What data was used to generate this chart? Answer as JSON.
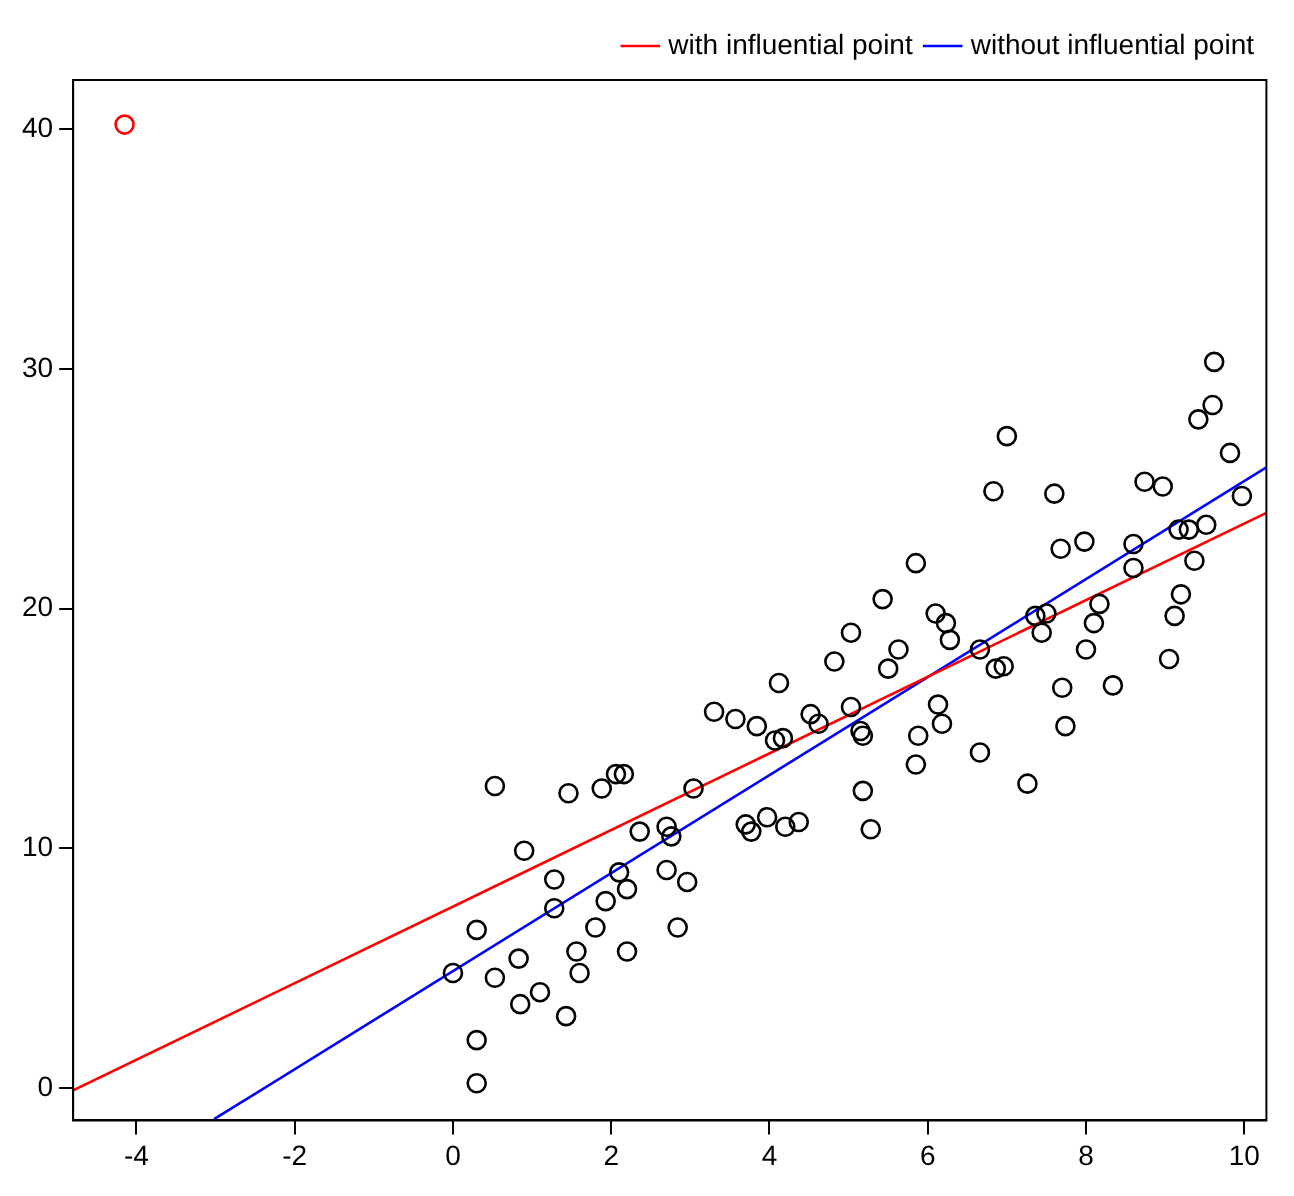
{
  "chart_data": {
    "type": "scatter",
    "xlim": [
      -4.8,
      10.28
    ],
    "ylim": [
      -1.35,
      42.06
    ],
    "xticks": [
      -4,
      -2,
      0,
      2,
      4,
      6,
      8,
      10
    ],
    "yticks": [
      0,
      10,
      20,
      30,
      40
    ],
    "grid": false,
    "legend": "top right",
    "series": [
      {
        "marker": "circle",
        "color": "#000000",
        "x": [
          0,
          0.3,
          0.3,
          0.3,
          0.53,
          0.53,
          0.83,
          0.85,
          0.9,
          1.1,
          1.28,
          1.28,
          1.46,
          1.43,
          1.56,
          1.6,
          1.8,
          1.88,
          1.93,
          2.06,
          2.16,
          2.1,
          2.2,
          2.2,
          2.36,
          2.7,
          2.7,
          2.76,
          2.84,
          2.96,
          3.04,
          3.3,
          3.57,
          3.7,
          3.77,
          3.84,
          3.97,
          4.07,
          4.12,
          4.17,
          4.2,
          4.37,
          4.52,
          4.62,
          4.82,
          5.03,
          5.03,
          5.15,
          5.18,
          5.18,
          5.28,
          5.43,
          5.5,
          5.63,
          5.85,
          5.85,
          5.88,
          6.1,
          6.23,
          6.13,
          6.28,
          6.18,
          6.66,
          6.66,
          6.83,
          6.86,
          6.96,
          7.0,
          7.26,
          7.36,
          7.44,
          7.5,
          7.6,
          7.68,
          7.7,
          7.74,
          7.98,
          8.0,
          8.1,
          8.17,
          8.34,
          8.6,
          8.6,
          8.74,
          8.97,
          9.05,
          9.12,
          9.2,
          9.17,
          9.3,
          9.37,
          9.42,
          9.52,
          9.6,
          9.62,
          9.82,
          9.97
        ],
        "values": [
          4.8,
          6.6,
          2.0,
          0.2,
          12.6,
          4.6,
          5.4,
          3.5,
          9.9,
          4.0,
          8.7,
          7.5,
          12.3,
          3.0,
          5.7,
          4.8,
          6.7,
          12.5,
          7.8,
          13.1,
          13.1,
          9.0,
          8.3,
          5.7,
          10.7,
          10.9,
          9.1,
          10.5,
          6.7,
          8.6,
          12.5,
          15.7,
          15.4,
          11.0,
          10.7,
          15.1,
          11.3,
          14.5,
          16.9,
          14.6,
          10.9,
          11.1,
          15.6,
          15.2,
          17.8,
          19.0,
          15.9,
          14.9,
          14.7,
          12.4,
          10.8,
          20.4,
          17.5,
          18.3,
          21.9,
          13.5,
          14.7,
          19.8,
          19.4,
          16.0,
          18.7,
          15.2,
          18.3,
          14.0,
          24.9,
          17.5,
          17.6,
          27.2,
          12.7,
          19.7,
          19.0,
          19.8,
          24.8,
          22.5,
          16.7,
          15.1,
          22.8,
          18.3,
          19.4,
          20.2,
          16.8,
          22.7,
          21.7,
          25.3,
          25.1,
          17.9,
          19.7,
          20.6,
          23.3,
          23.3,
          22.0,
          27.9,
          23.5,
          28.5,
          30.3,
          26.5,
          24.7
        ]
      },
      {
        "marker": "circle",
        "color": "#ff0000",
        "x": [
          -4.15
        ],
        "values": [
          40.2
        ]
      },
      {
        "type": "line",
        "name": "with influential point",
        "color": "#ff0000",
        "x": [
          -4.8,
          10.28
        ],
        "values": [
          -0.1,
          24.0
        ]
      },
      {
        "type": "line",
        "name": "without influential point",
        "color": "#0000ff",
        "x": [
          -3.02,
          10.28
        ],
        "values": [
          -1.3,
          25.9
        ]
      }
    ]
  }
}
